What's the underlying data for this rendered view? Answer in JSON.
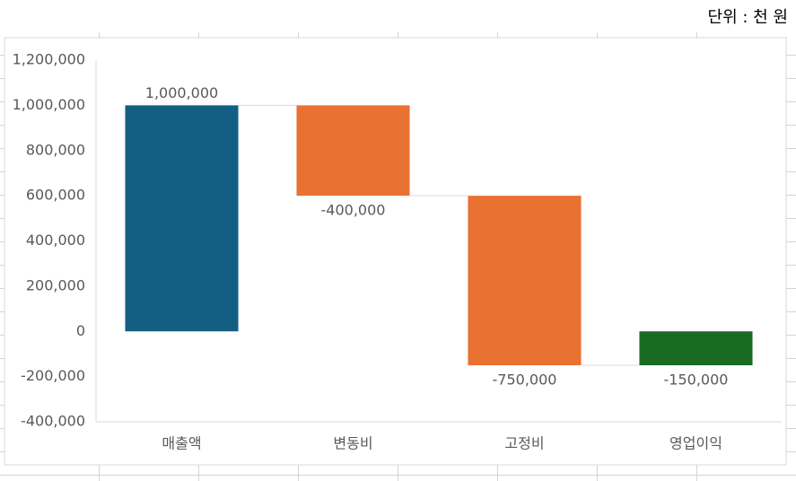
{
  "chart_data": {
    "type": "waterfall",
    "unit_label": "단위 : 천 원",
    "categories": [
      "매출액",
      "변동비",
      "고정비",
      "영업이익"
    ],
    "values": [
      1000000,
      -400000,
      -750000,
      -150000
    ],
    "value_labels": [
      "1,000,000",
      "-400,000",
      "-750,000",
      "-150,000"
    ],
    "totals": [
      true,
      false,
      false,
      true
    ],
    "colors": [
      "#155e83",
      "#e97132",
      "#e97132",
      "#196b24"
    ],
    "ylim": [
      -400000,
      1200000
    ],
    "yticks": [
      {
        "value": -400000,
        "label": "-400,000"
      },
      {
        "value": -200000,
        "label": "-200,000"
      },
      0,
      {
        "value": 200000,
        "label": "200,000"
      },
      {
        "value": 400000,
        "label": "400,000"
      },
      {
        "value": 600000,
        "label": "600,000"
      },
      {
        "value": 800000,
        "label": "800,000"
      },
      {
        "value": 1000000,
        "label": "1,000,000"
      },
      {
        "value": 1200000,
        "label": "1,200,000"
      }
    ],
    "grid": false
  }
}
